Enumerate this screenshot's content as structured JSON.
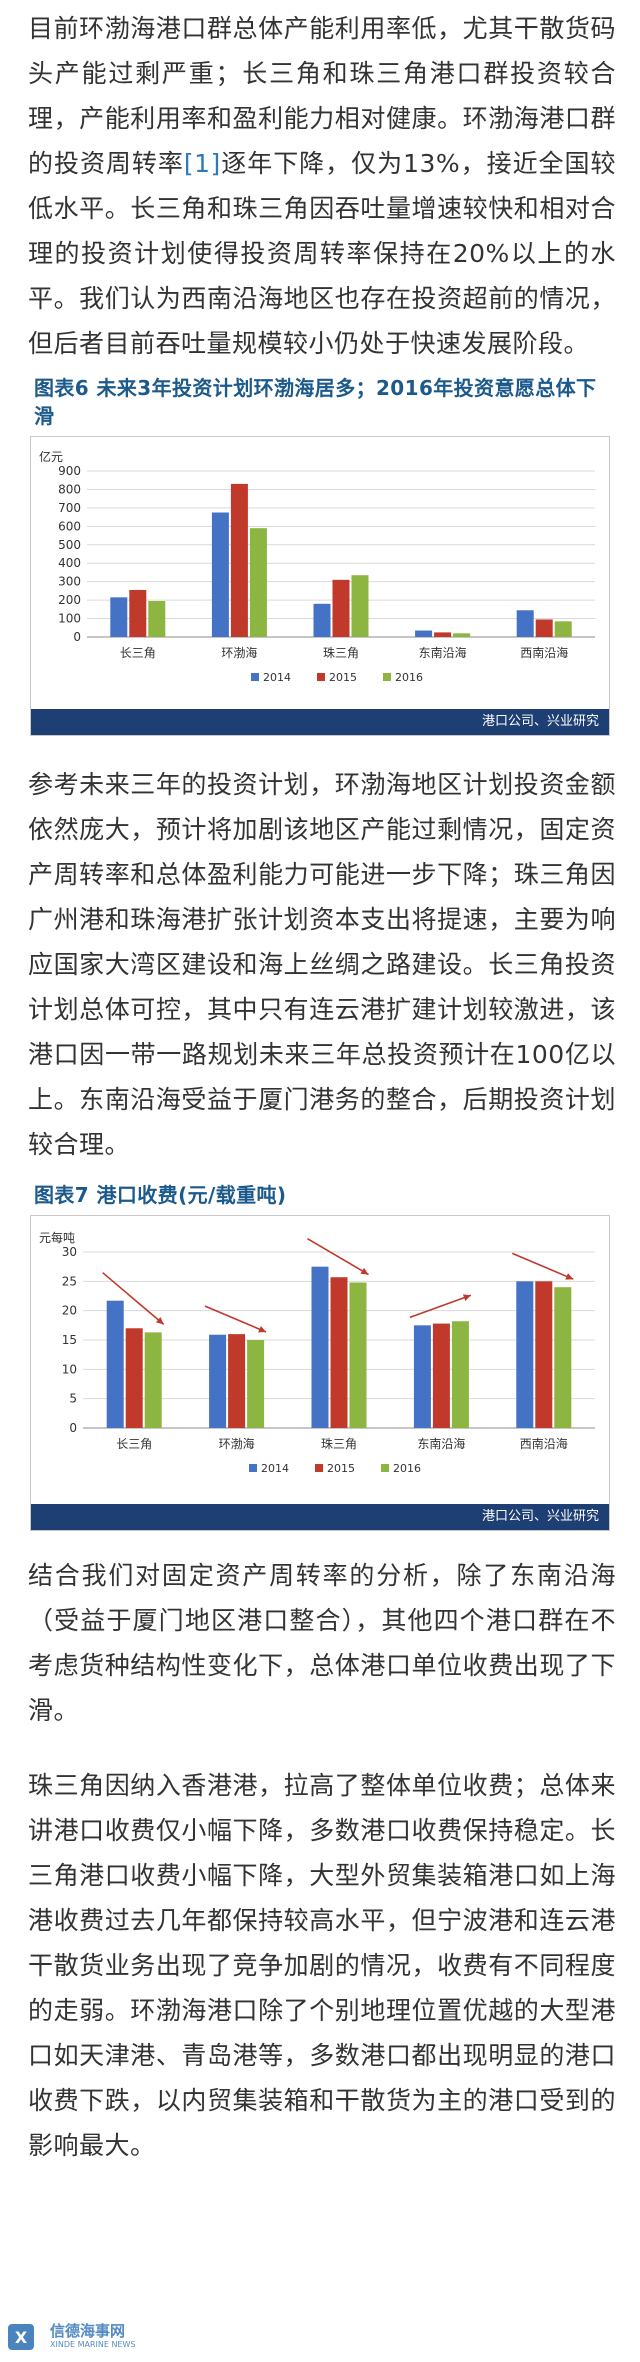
{
  "paragraphs": {
    "p1_before_ref": "目前环渤海港口群总体产能利用率低，尤其干散货码头产能过剩严重；长三角和珠三角港口群投资较合理，产能利用率和盈利能力相对健康。环渤海港口群的投资周转率",
    "p1_ref": "[1]",
    "p1_after_ref": "逐年下降，仅为13%，接近全国较低水平。长三角和珠三角因吞吐量增速较快和相对合理的投资计划使得投资周转率保持在20%以上的水平。我们认为西南沿海地区也存在投资超前的情况，但后者目前吞吐量规模较小仍处于快速发展阶段。",
    "p2": "参考未来三年的投资计划，环渤海地区计划投资金额依然庞大，预计将加剧该地区产能过剩情况，固定资产周转率和总体盈利能力可能进一步下降；珠三角因广州港和珠海港扩张计划资本支出将提速，主要为响应国家大湾区建设和海上丝绸之路建设。长三角投资计划总体可控，其中只有连云港扩建计划较激进，该港口因一带一路规划未来三年总投资预计在100亿以上。东南沿海受益于厦门港务的整合，后期投资计划较合理。",
    "p3": "结合我们对固定资产周转率的分析，除了东南沿海（受益于厦门地区港口整合），其他四个港口群在不考虑货种结构性变化下，总体港口单位收费出现了下滑。",
    "p4": "珠三角因纳入香港港，拉高了整体单位收费；总体来讲港口收费仅小幅下降，多数港口收费保持稳定。长三角港口收费小幅下降，大型外贸集装箱港口如上海港收费过去几年都保持较高水平，但宁波港和连云港干散货业务出现了竞争加剧的情况，收费有不同程度的走弱。环渤海港口除了个别地理位置优越的大型港口如天津港、青岛港等，多数港口都出现明显的港口收费下跌，以内贸集装箱和干散货为主的港口受到的影响最大。"
  },
  "figure6": {
    "title": "图表6  未来3年投资计划环渤海居多；2016年投资意愿总体下滑",
    "source": "港口公司、兴业研究"
  },
  "figure7": {
    "title": "图表7  港口收费(元/载重吨)",
    "source": "港口公司、兴业研究"
  },
  "watermark": {
    "brand": "信德海事网",
    "sub": "XINDE MARINE NEWS"
  },
  "colors": {
    "s2014": "#4472c4",
    "s2015": "#c0392b",
    "s2016": "#8db542",
    "arrow": "#c0392b",
    "source_bar": "#1e3f73",
    "title": "#1d5a8c"
  },
  "chart_data": [
    {
      "type": "bar",
      "ylabel": "亿元",
      "ylim": [
        0,
        900
      ],
      "yticks": [
        0,
        100,
        200,
        300,
        400,
        500,
        600,
        700,
        800,
        900
      ],
      "categories": [
        "长三角",
        "环渤海",
        "珠三角",
        "东南沿海",
        "西南沿海"
      ],
      "series": [
        {
          "name": "2014",
          "values": [
            215,
            675,
            180,
            35,
            145
          ]
        },
        {
          "name": "2015",
          "values": [
            255,
            830,
            310,
            25,
            95
          ]
        },
        {
          "name": "2016",
          "values": [
            195,
            590,
            335,
            20,
            85
          ]
        }
      ],
      "legend": "bottom",
      "grid": true
    },
    {
      "type": "bar",
      "ylabel": "元每吨",
      "ylim": [
        0,
        30
      ],
      "yticks": [
        0,
        5,
        10,
        15,
        20,
        25,
        30
      ],
      "categories": [
        "长三角",
        "环渤海",
        "珠三角",
        "东南沿海",
        "西南沿海"
      ],
      "series": [
        {
          "name": "2014",
          "values": [
            21.7,
            15.9,
            27.5,
            17.5,
            25.0
          ]
        },
        {
          "name": "2015",
          "values": [
            17.0,
            16.0,
            25.7,
            17.8,
            25.0
          ]
        },
        {
          "name": "2016",
          "values": [
            16.3,
            15.0,
            24.8,
            18.2,
            24.0
          ]
        }
      ],
      "legend": "bottom",
      "grid": true,
      "trend_arrows": [
        "down",
        "down",
        "down",
        "up",
        "down"
      ]
    }
  ]
}
